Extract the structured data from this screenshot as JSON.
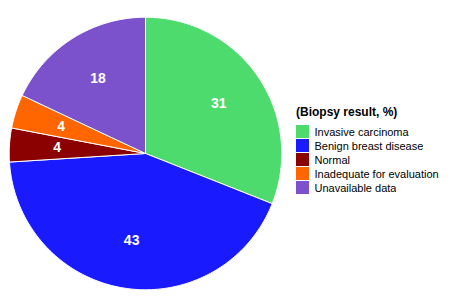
{
  "chart_data": {
    "type": "pie",
    "categories": [
      "Invasive carcinoma",
      "Benign breast disease",
      "Normal",
      "Inadequate for evaluation",
      "Unavailable data"
    ],
    "values": [
      31,
      43,
      4,
      4,
      18
    ],
    "colors": [
      "#4ddb6e",
      "#1a1aff",
      "#8b0000",
      "#ff6600",
      "#7b52cc"
    ],
    "legend_title": "(Biopsy result, %)",
    "legend": "right",
    "data_labels": true
  }
}
